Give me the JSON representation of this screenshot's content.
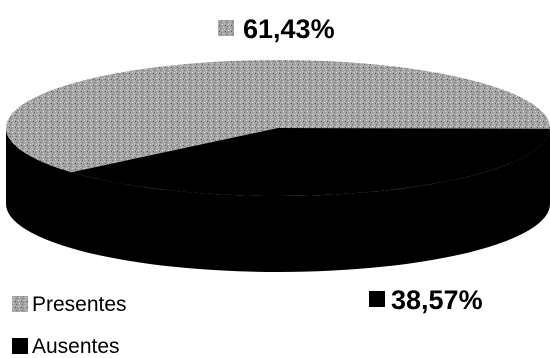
{
  "chart_data": {
    "type": "pie",
    "title": "",
    "series": [
      {
        "name": "Presentes",
        "value": 61.43,
        "label": "61,43%",
        "color": "#a9a9a9",
        "pattern": "stipple"
      },
      {
        "name": "Ausentes",
        "value": 38.57,
        "label": "38,57%",
        "color": "#000000",
        "pattern": "solid"
      }
    ],
    "style": "3d-pie",
    "legend": {
      "position": "bottom-left"
    }
  }
}
